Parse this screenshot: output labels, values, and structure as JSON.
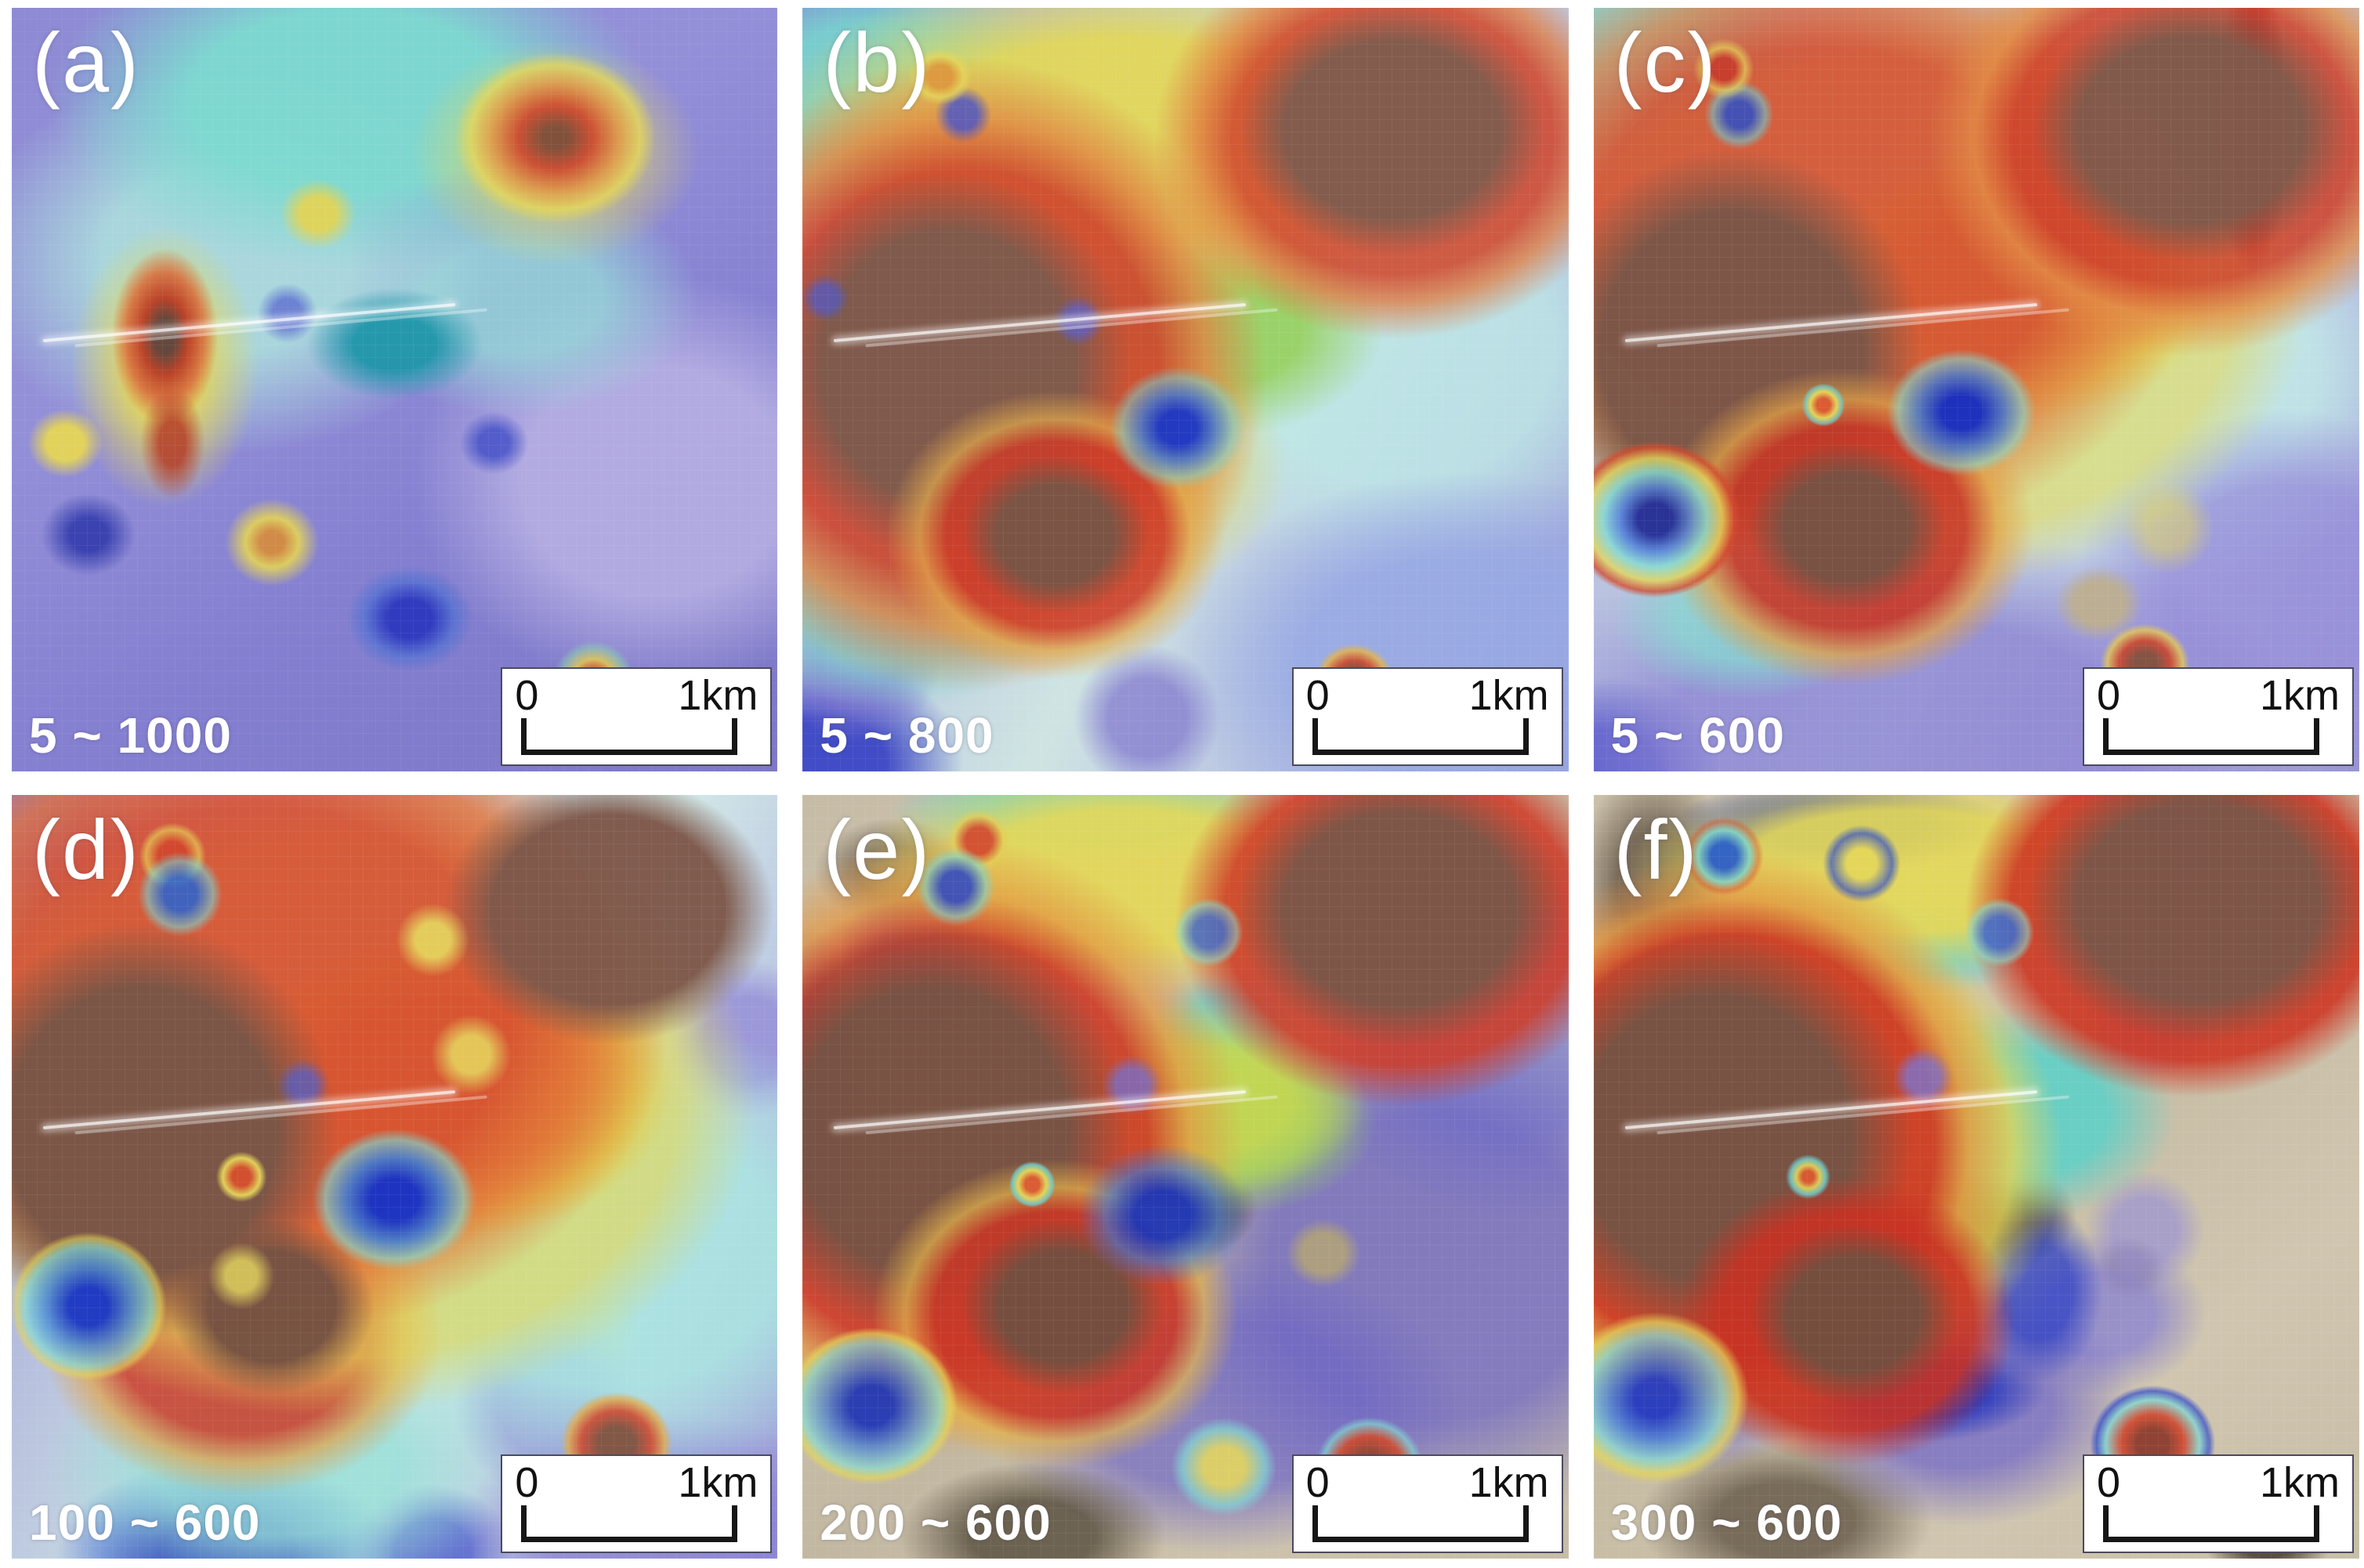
{
  "figure": {
    "panels": [
      {
        "letter": "(a)",
        "range_label": "5 ~ 1000",
        "scale_start": "0",
        "scale_end": "1km"
      },
      {
        "letter": "(b)",
        "range_label": "5 ~ 800",
        "scale_start": "0",
        "scale_end": "1km"
      },
      {
        "letter": "(c)",
        "range_label": "5 ~ 600",
        "scale_start": "0",
        "scale_end": "1km"
      },
      {
        "letter": "(d)",
        "range_label": "100 ~ 600",
        "scale_start": "0",
        "scale_end": "1km"
      },
      {
        "letter": "(e)",
        "range_label": "200 ~ 600",
        "scale_start": "0",
        "scale_end": "1km"
      },
      {
        "letter": "(f)",
        "range_label": "300 ~ 600",
        "scale_start": "0",
        "scale_end": "1km"
      }
    ],
    "colors": {
      "heat_low": "#2d3bc4",
      "heat_mid_low": "#6ccfc6",
      "heat_mid": "#99d25e",
      "heat_mid_high": "#e0d44e",
      "heat_high": "#d8422c",
      "heat_peak": "#7e2e1e",
      "terrain_brown": "#7d594b",
      "terrain_tan": "#cfc3ac",
      "label_text": "#ffffff",
      "scalebar_text": "#111111",
      "background": "#ffffff"
    }
  }
}
